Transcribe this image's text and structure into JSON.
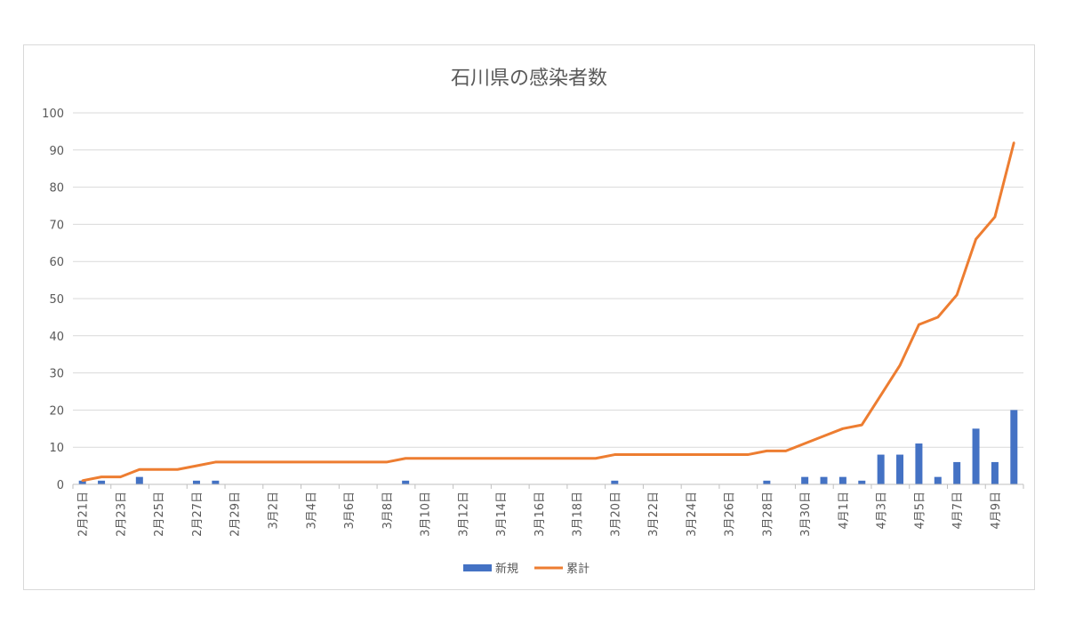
{
  "chart_data": {
    "type": "bar+line",
    "title": "石川県の感染者数",
    "xlabel": "",
    "ylabel": "",
    "ylim": [
      0,
      100
    ],
    "yticks": [
      0,
      10,
      20,
      30,
      40,
      50,
      60,
      70,
      80,
      90,
      100
    ],
    "grid": true,
    "legend_position": "bottom",
    "categories": [
      "2月21日",
      "2月22日",
      "2月23日",
      "2月24日",
      "2月25日",
      "2月26日",
      "2月27日",
      "2月28日",
      "2月29日",
      "3月1日",
      "3月2日",
      "3月3日",
      "3月4日",
      "3月5日",
      "3月6日",
      "3月7日",
      "3月8日",
      "3月9日",
      "3月10日",
      "3月11日",
      "3月12日",
      "3月13日",
      "3月14日",
      "3月15日",
      "3月16日",
      "3月17日",
      "3月18日",
      "3月19日",
      "3月20日",
      "3月21日",
      "3月22日",
      "3月23日",
      "3月24日",
      "3月25日",
      "3月26日",
      "3月27日",
      "3月28日",
      "3月29日",
      "3月30日",
      "3月31日",
      "4月1日",
      "4月2日",
      "4月3日",
      "4月4日",
      "4月5日",
      "4月6日",
      "4月7日",
      "4月8日",
      "4月9日",
      "4月10日"
    ],
    "tick_labels": [
      "2月21日",
      "2月23日",
      "2月25日",
      "2月27日",
      "2月29日",
      "3月2日",
      "3月4日",
      "3月6日",
      "3月8日",
      "3月10日",
      "3月12日",
      "3月14日",
      "3月16日",
      "3月18日",
      "3月20日",
      "3月22日",
      "3月24日",
      "3月26日",
      "3月28日",
      "3月30日",
      "4月1日",
      "4月3日",
      "4月5日",
      "4月7日",
      "4月9日"
    ],
    "series": [
      {
        "name": "新規",
        "kind": "bar",
        "color": "#4472c4",
        "values": [
          1,
          1,
          0,
          2,
          0,
          0,
          1,
          1,
          0,
          0,
          0,
          0,
          0,
          0,
          0,
          0,
          0,
          1,
          0,
          0,
          0,
          0,
          0,
          0,
          0,
          0,
          0,
          0,
          1,
          0,
          0,
          0,
          0,
          0,
          0,
          0,
          1,
          0,
          2,
          2,
          2,
          1,
          8,
          8,
          11,
          2,
          6,
          15,
          6,
          20
        ]
      },
      {
        "name": "累計",
        "kind": "line",
        "color": "#ed7d31",
        "values": [
          1,
          2,
          2,
          4,
          4,
          4,
          5,
          6,
          6,
          6,
          6,
          6,
          6,
          6,
          6,
          6,
          6,
          7,
          7,
          7,
          7,
          7,
          7,
          7,
          7,
          7,
          7,
          7,
          8,
          8,
          8,
          8,
          8,
          8,
          8,
          8,
          9,
          9,
          11,
          13,
          15,
          16,
          24,
          32,
          43,
          45,
          51,
          66,
          72,
          92
        ]
      }
    ]
  }
}
